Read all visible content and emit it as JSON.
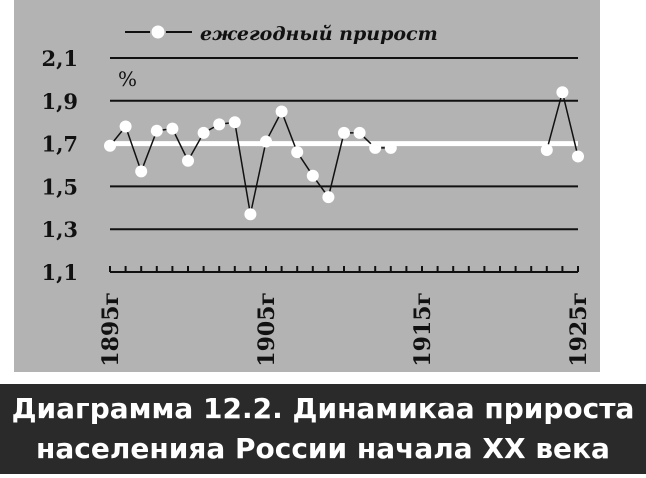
{
  "chart_data": {
    "type": "line",
    "legend": {
      "label": "ежегодный прирост",
      "placement": "top"
    },
    "ylabel": "%",
    "ylim": [
      1.1,
      2.1
    ],
    "y_ticks": [
      "2,1",
      "1,9",
      "1,7",
      "1,5",
      "1,3",
      "1,1"
    ],
    "x_range": [
      1895,
      1925
    ],
    "x_ticks": [
      "1895г",
      "1905г",
      "1915г",
      "1925г"
    ],
    "grid": true,
    "reference_line": 1.7,
    "series": [
      {
        "name": "ежегодный прирост",
        "x": [
          1895,
          1896,
          1897,
          1898,
          1899,
          1900,
          1901,
          1902,
          1903,
          1904,
          1905,
          1906,
          1907,
          1908,
          1909,
          1910,
          1911,
          1912,
          1913,
          1914,
          1923,
          1924,
          1925
        ],
        "y": [
          1.69,
          1.78,
          1.57,
          1.76,
          1.77,
          1.62,
          1.75,
          1.79,
          1.8,
          1.37,
          1.71,
          1.85,
          1.66,
          1.55,
          1.45,
          1.75,
          1.75,
          1.68,
          1.68,
          null,
          1.67,
          1.94,
          1.64
        ]
      }
    ]
  },
  "caption": {
    "line1": "Диаграмма 12.2. Динамикаа прироста",
    "line2": "населенияа России начала XX века"
  }
}
